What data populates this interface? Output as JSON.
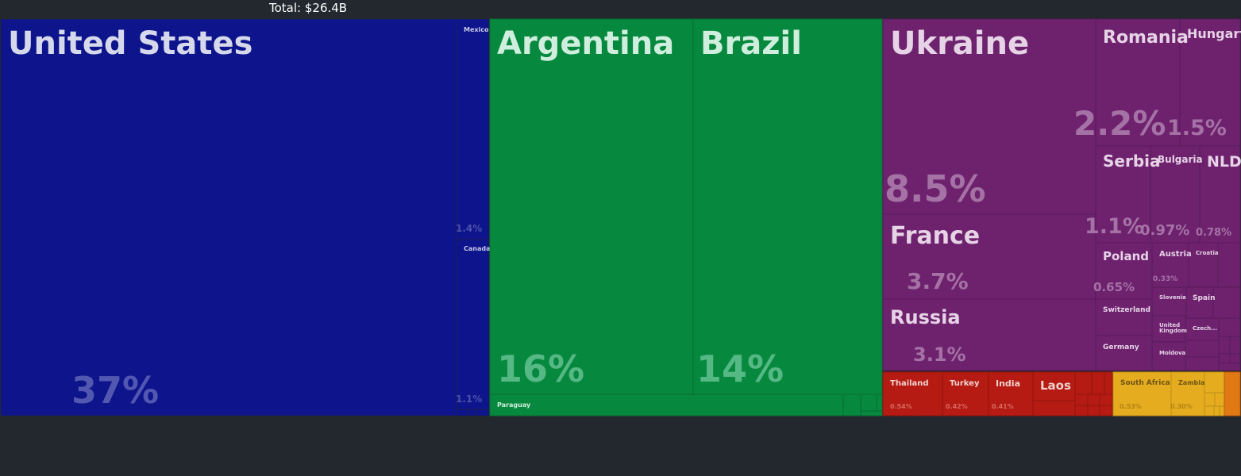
{
  "header": {
    "total": "Total: $26.4B"
  },
  "colors": {
    "background": "#23282f",
    "north_america": "#0d148c",
    "south_america": "#06893e",
    "europe": "#6e226e",
    "asia": "#b51b12",
    "africa": "#e4ac1e",
    "other": "#e07813"
  },
  "chart_data": {
    "type": "treemap",
    "total_label": "Total: $26.4B",
    "groups": [
      {
        "color": "#0d148c",
        "items": [
          {
            "name": "United States",
            "share": 37
          },
          {
            "name": "Mexico",
            "share": 1.4
          },
          {
            "name": "Canada",
            "share": 1.1
          }
        ]
      },
      {
        "color": "#06893e",
        "items": [
          {
            "name": "Argentina",
            "share": 16
          },
          {
            "name": "Brazil",
            "share": 14
          },
          {
            "name": "Paraguay",
            "share": null
          }
        ]
      },
      {
        "color": "#6e226e",
        "items": [
          {
            "name": "Ukraine",
            "share": 8.5
          },
          {
            "name": "France",
            "share": 3.7
          },
          {
            "name": "Russia",
            "share": 3.1
          },
          {
            "name": "Romania",
            "share": 2.2
          },
          {
            "name": "Hungary",
            "share": 1.5
          },
          {
            "name": "Serbia",
            "share": 1.1
          },
          {
            "name": "Bulgaria",
            "share": 0.97
          },
          {
            "name": "NLD",
            "share": 0.78
          },
          {
            "name": "Poland",
            "share": 0.65
          },
          {
            "name": "Austria",
            "share": 0.33
          },
          {
            "name": "Croatia",
            "share": null
          },
          {
            "name": "Slovenia",
            "share": null
          },
          {
            "name": "Spain",
            "share": null
          },
          {
            "name": "Switzerland",
            "share": null
          },
          {
            "name": "United Kingdom",
            "share": null
          },
          {
            "name": "Czech...",
            "share": null
          },
          {
            "name": "Germany",
            "share": null
          },
          {
            "name": "Moldova",
            "share": null
          }
        ]
      },
      {
        "color": "#b51b12",
        "items": [
          {
            "name": "Thailand",
            "share": 0.54
          },
          {
            "name": "Turkey",
            "share": 0.42
          },
          {
            "name": "India",
            "share": 0.41
          },
          {
            "name": "Laos",
            "share": null
          }
        ]
      },
      {
        "color": "#e4ac1e",
        "items": [
          {
            "name": "South Africa",
            "share": 0.53
          },
          {
            "name": "Zambia",
            "share": 0.3
          }
        ]
      }
    ]
  },
  "labels": {
    "us": "United States",
    "us_pct": "37%",
    "mexico": "Mexico",
    "mexico_pct": "1.4%",
    "canada": "Canada",
    "canada_pct": "1.1%",
    "argentina": "Argentina",
    "argentina_pct": "16%",
    "brazil": "Brazil",
    "brazil_pct": "14%",
    "paraguay": "Paraguay",
    "ukraine": "Ukraine",
    "ukraine_pct": "8.5%",
    "france": "France",
    "france_pct": "3.7%",
    "russia": "Russia",
    "russia_pct": "3.1%",
    "romania": "Romania",
    "romania_pct": "2.2%",
    "hungary": "Hungary",
    "hungary_pct": "1.5%",
    "serbia": "Serbia",
    "serbia_pct": "1.1%",
    "bulgaria": "Bulgaria",
    "bulgaria_pct": "0.97%",
    "nld": "NLD",
    "nld_pct": "0.78%",
    "poland": "Poland",
    "poland_pct": "0.65%",
    "austria": "Austria",
    "austria_pct": "0.33%",
    "croatia": "Croatia",
    "slovenia": "Slovenia",
    "spain": "Spain",
    "switzerland": "Switzerland",
    "uk_line1": "United",
    "uk_line2": "Kingdom",
    "czech": "Czech...",
    "germany": "Germany",
    "moldova": "Moldova",
    "thailand": "Thailand",
    "thailand_pct": "0.54%",
    "turkey": "Turkey",
    "turkey_pct": "0.42%",
    "india": "India",
    "india_pct": "0.41%",
    "laos": "Laos",
    "southafrica": "South Africa",
    "southafrica_pct": "0.53%",
    "zambia": "Zambia",
    "zambia_pct": "0.30%"
  }
}
